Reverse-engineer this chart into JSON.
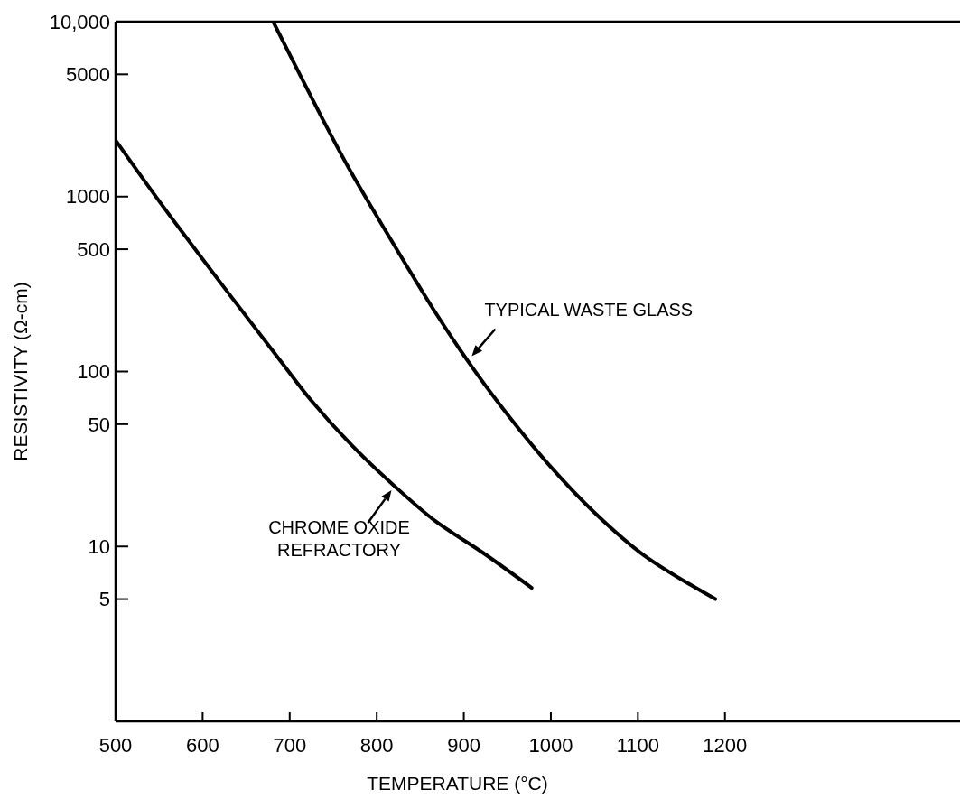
{
  "chart_data": {
    "type": "line",
    "xlabel": "TEMPERATURE (°C)",
    "ylabel": "RESISTIVITY (Ω-cm)",
    "log": "y",
    "xlim": [
      500,
      1470
    ],
    "ylim": [
      1,
      10000
    ],
    "xticks": [
      500,
      600,
      700,
      800,
      900,
      1000,
      1100,
      1200
    ],
    "yticks": [
      5,
      10,
      50,
      100,
      500,
      1000,
      5000,
      {
        "value": 10000,
        "label": "10,000"
      }
    ],
    "grid": false,
    "marker": "none",
    "line_style": "solid",
    "series": [
      {
        "color": "#000000",
        "x": [
          500,
          553,
          631,
          690,
          724,
          771,
          821,
          867,
          922,
          978
        ],
        "values": [
          2100,
          900,
          275,
          114,
          69,
          38,
          22,
          14,
          9.2,
          5.8
        ]
      },
      {
        "color": "#000000",
        "x": [
          681,
          738,
          767,
          806,
          867,
          905,
          941,
          996,
          1052,
          1107,
          1189
        ],
        "values": [
          10000,
          2760,
          1480,
          690,
          219,
          114,
          65,
          30,
          15.3,
          8.9,
          5.0
        ]
      }
    ],
    "annotations": [
      {
        "text": "TYPICAL WASTE GLASS",
        "x": 905,
        "y": 114
      },
      {
        "text": "CHROME OXIDE\nREFRACTORY",
        "x": 819,
        "y": 22
      }
    ]
  }
}
